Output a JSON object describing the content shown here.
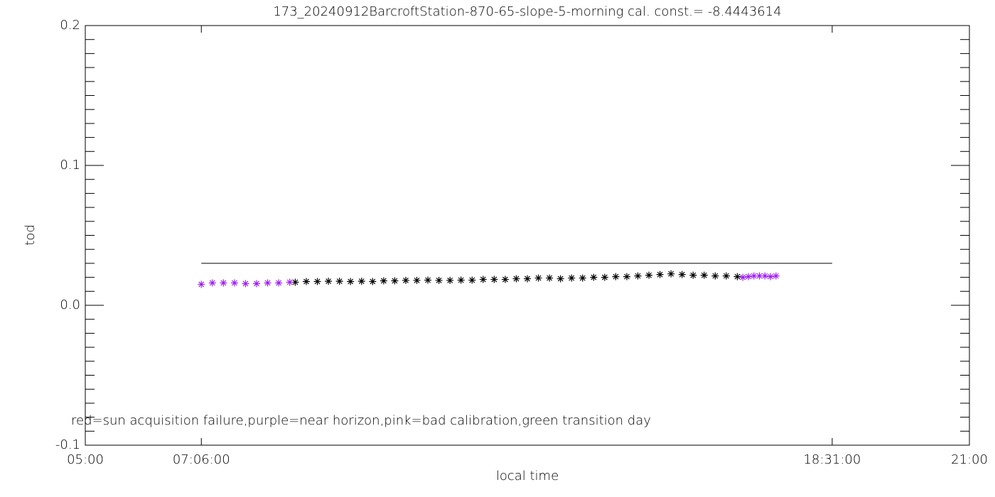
{
  "chart_data": {
    "type": "scatter",
    "title": "173_20240912BarcroftStation-870-65-slope-5-morning cal. const.= -8.4443614",
    "xlabel": "local time",
    "ylabel": "tod",
    "annotation": "red=sun acquisition failure,purple=near horizon,pink=bad calibration,green transition day",
    "xlim": [
      5,
      21
    ],
    "ylim": [
      -0.1,
      0.2
    ],
    "xticks": [
      {
        "value": 5,
        "label": "05:00"
      },
      {
        "value": 7.1,
        "label": "07:06:00"
      },
      {
        "value": 18.51667,
        "label": "18:31:00"
      },
      {
        "value": 21,
        "label": "21:00"
      }
    ],
    "yticks": [
      -0.1,
      {
        "value": 0,
        "label": "0.0"
      },
      0.1,
      0.2
    ],
    "reference_line": {
      "value": 0.03,
      "x": [
        7.1,
        18.51667
      ],
      "color": "#000000"
    },
    "series": [
      {
        "color": "#000000",
        "x": [
          8.8,
          9.0,
          9.2,
          9.4,
          9.6,
          9.8,
          10.0,
          10.2,
          10.4,
          10.6,
          10.8,
          11.0,
          11.2,
          11.4,
          11.6,
          11.8,
          12.0,
          12.2,
          12.4,
          12.6,
          12.8,
          13.0,
          13.2,
          13.4,
          13.6,
          13.8,
          14.0,
          14.2,
          14.4,
          14.6,
          14.8,
          15.0,
          15.2,
          15.4,
          15.6,
          15.8,
          16.0,
          16.2,
          16.4,
          16.6,
          16.8
        ],
        "values": [
          0.0165,
          0.017,
          0.017,
          0.0172,
          0.0172,
          0.017,
          0.0172,
          0.017,
          0.0175,
          0.0175,
          0.0178,
          0.0178,
          0.018,
          0.0178,
          0.0178,
          0.018,
          0.018,
          0.0185,
          0.0185,
          0.0185,
          0.019,
          0.019,
          0.0195,
          0.0195,
          0.019,
          0.0195,
          0.0195,
          0.02,
          0.02,
          0.0205,
          0.0205,
          0.021,
          0.0215,
          0.022,
          0.0225,
          0.022,
          0.0215,
          0.0215,
          0.021,
          0.021,
          0.0205
        ]
      },
      {
        "color": "#a020f0",
        "x": [
          7.1,
          7.3,
          7.5,
          7.7,
          7.9,
          8.1,
          8.3,
          8.5,
          8.7,
          16.9,
          17.0,
          17.1,
          17.2,
          17.3,
          17.4,
          17.5
        ],
        "values": [
          0.015,
          0.016,
          0.016,
          0.016,
          0.0155,
          0.0155,
          0.016,
          0.016,
          0.0165,
          0.02,
          0.0205,
          0.021,
          0.021,
          0.021,
          0.0205,
          0.021
        ]
      }
    ]
  }
}
